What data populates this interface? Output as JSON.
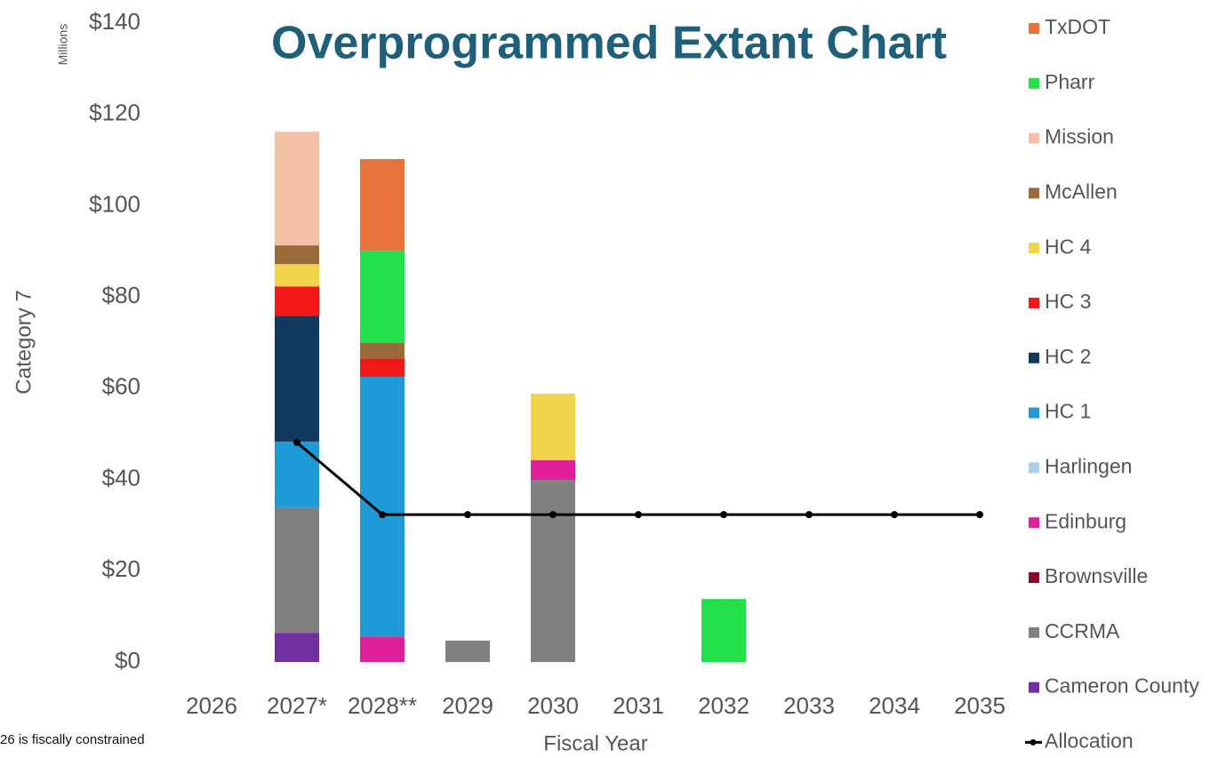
{
  "chart_data": {
    "type": "stacked_bar_line",
    "title": "Overprogrammed Extant Chart",
    "y_unit_label": "Millions",
    "y_label": "Category 7",
    "x_label": "Fiscal Year",
    "footnote": "26 is fiscally constrained",
    "categories": [
      "2026",
      "2027*",
      "2028**",
      "2029",
      "2030",
      "2031",
      "2032",
      "2033",
      "2034",
      "2035"
    ],
    "series": [
      {
        "name": "Cameron County",
        "color": "#7030a0",
        "values": [
          0,
          6.4,
          0,
          0,
          0,
          0,
          0,
          0,
          0,
          0
        ]
      },
      {
        "name": "CCRMA",
        "color": "#808080",
        "values": [
          0,
          27.5,
          0,
          4.7,
          39.9,
          0,
          0,
          0,
          0,
          0
        ]
      },
      {
        "name": "Brownsville",
        "color": "#8a0a2a",
        "values": [
          0,
          0,
          0,
          0,
          0,
          0,
          0,
          0,
          0,
          0
        ]
      },
      {
        "name": "Edinburg",
        "color": "#e0209a",
        "values": [
          0,
          0,
          5.6,
          0,
          4.3,
          0,
          0,
          0,
          0,
          0
        ]
      },
      {
        "name": "Harlingen",
        "color": "#a8d0ee",
        "values": [
          0,
          0,
          0,
          0,
          0,
          0,
          0,
          0,
          0,
          0
        ]
      },
      {
        "name": "HC 1",
        "color": "#1e9bd7",
        "values": [
          0,
          14.4,
          56.9,
          0,
          0,
          0,
          0,
          0,
          0,
          0
        ]
      },
      {
        "name": "HC 2",
        "color": "#123a5e",
        "values": [
          0,
          27.6,
          0,
          0,
          0,
          0,
          0,
          0,
          0,
          0
        ]
      },
      {
        "name": "HC 3",
        "color": "#f21818",
        "values": [
          0,
          6.4,
          3.9,
          0,
          0,
          0,
          0,
          0,
          0,
          0
        ]
      },
      {
        "name": "HC 4",
        "color": "#f2d44a",
        "values": [
          0,
          4.9,
          0,
          0,
          14.6,
          0,
          0,
          0,
          0,
          0
        ]
      },
      {
        "name": "McAllen",
        "color": "#9b6a3a",
        "values": [
          0,
          4.1,
          3.5,
          0,
          0,
          0,
          0,
          0,
          0,
          0
        ]
      },
      {
        "name": "Mission",
        "color": "#f4c0a8",
        "values": [
          0,
          24.9,
          0,
          0,
          0,
          0,
          0,
          0,
          0,
          0
        ]
      },
      {
        "name": "Pharr",
        "color": "#22e04a",
        "values": [
          0,
          0,
          20.2,
          0,
          0,
          0,
          13.8,
          0,
          0,
          0
        ]
      },
      {
        "name": "TxDOT",
        "color": "#e8733a",
        "values": [
          0,
          0,
          20.1,
          0,
          0,
          0,
          0,
          0,
          0,
          0
        ]
      }
    ],
    "line": {
      "name": "Allocation",
      "color": "#000000",
      "values": [
        null,
        48.1,
        32.3,
        32.3,
        32.3,
        32.3,
        32.3,
        32.3,
        32.3,
        32.3
      ]
    },
    "ylim": [
      0,
      140
    ],
    "yticks": [
      {
        "value": 0,
        "label": "$0"
      },
      {
        "value": 20,
        "label": "$20"
      },
      {
        "value": 40,
        "label": "$40"
      },
      {
        "value": 60,
        "label": "$60"
      },
      {
        "value": 80,
        "label": "$80"
      },
      {
        "value": 100,
        "label": "$100"
      },
      {
        "value": 120,
        "label": "$120"
      },
      {
        "value": 140,
        "label": "$140"
      }
    ],
    "grid": false,
    "legend": "right"
  }
}
